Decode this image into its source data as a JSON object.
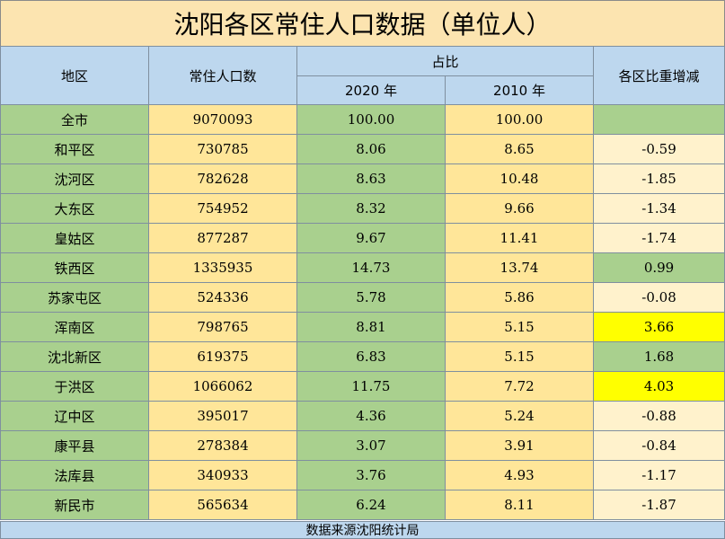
{
  "title": "沈阳各区常住人口数据（单位人）",
  "headers": {
    "region": "地区",
    "population": "常住人口数",
    "share": "占比",
    "year2020": "2020 年",
    "year2010": "2010 年",
    "change": "各区比重增减"
  },
  "rows": [
    {
      "region": "全市",
      "population": "9070093",
      "s2020": "100.00",
      "s2010": "100.00",
      "change": "",
      "change_style": "green"
    },
    {
      "region": "和平区",
      "population": "730785",
      "s2020": "8.06",
      "s2010": "8.65",
      "change": "-0.59",
      "change_style": "cream"
    },
    {
      "region": "沈河区",
      "population": "782628",
      "s2020": "8.63",
      "s2010": "10.48",
      "change": "-1.85",
      "change_style": "cream"
    },
    {
      "region": "大东区",
      "population": "754952",
      "s2020": "8.32",
      "s2010": "9.66",
      "change": "-1.34",
      "change_style": "cream"
    },
    {
      "region": "皇姑区",
      "population": "877287",
      "s2020": "9.67",
      "s2010": "11.41",
      "change": "-1.74",
      "change_style": "cream"
    },
    {
      "region": "铁西区",
      "population": "1335935",
      "s2020": "14.73",
      "s2010": "13.74",
      "change": "0.99",
      "change_style": "green"
    },
    {
      "region": "苏家屯区",
      "population": "524336",
      "s2020": "5.78",
      "s2010": "5.86",
      "change": "-0.08",
      "change_style": "cream"
    },
    {
      "region": "浑南区",
      "population": "798765",
      "s2020": "8.81",
      "s2010": "5.15",
      "change": "3.66",
      "change_style": "highlight"
    },
    {
      "region": "沈北新区",
      "population": "619375",
      "s2020": "6.83",
      "s2010": "5.15",
      "change": "1.68",
      "change_style": "green"
    },
    {
      "region": "于洪区",
      "population": "1066062",
      "s2020": "11.75",
      "s2010": "7.72",
      "change": "4.03",
      "change_style": "highlight"
    },
    {
      "region": "辽中区",
      "population": "395017",
      "s2020": "4.36",
      "s2010": "5.24",
      "change": "-0.88",
      "change_style": "cream"
    },
    {
      "region": "康平县",
      "population": "278384",
      "s2020": "3.07",
      "s2010": "3.91",
      "change": "-0.84",
      "change_style": "cream"
    },
    {
      "region": "法库县",
      "population": "340933",
      "s2020": "3.76",
      "s2010": "4.93",
      "change": "-1.17",
      "change_style": "cream"
    },
    {
      "region": "新民市",
      "population": "565634",
      "s2020": "6.24",
      "s2010": "8.11",
      "change": "-1.87",
      "change_style": "cream"
    }
  ],
  "footer": "数据来源沈阳统计局",
  "colors": {
    "green": "#a9d08e",
    "yellow": "#ffe699",
    "cream": "#fff2cc",
    "highlight": "#ffff00",
    "header_blue": "#bdd7ee",
    "title_bg": "#fce4b0"
  }
}
